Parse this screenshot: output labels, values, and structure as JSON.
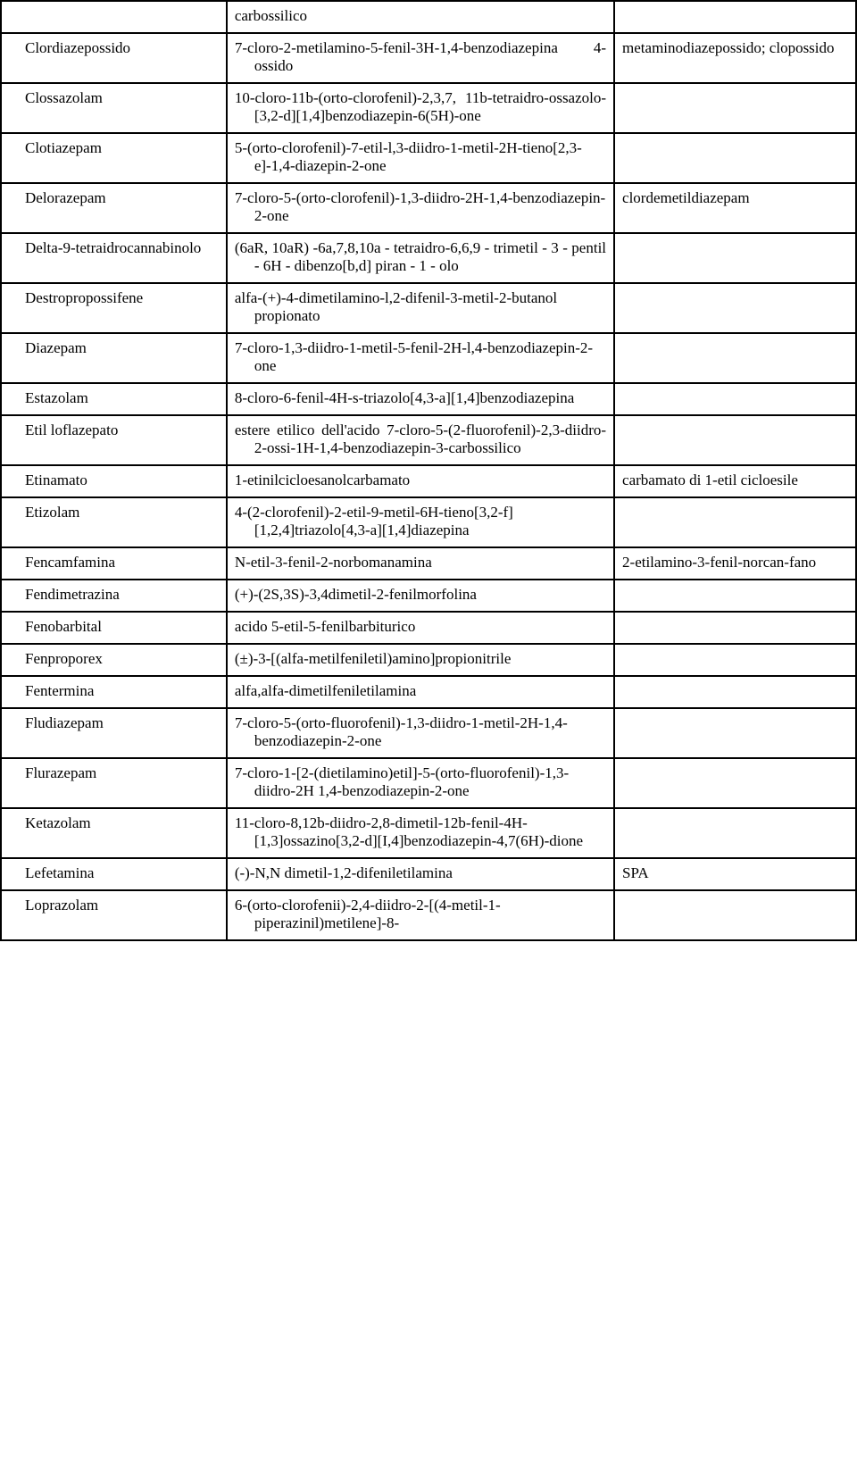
{
  "rows": [
    {
      "c1": "",
      "c2": "carbossilico",
      "c3": ""
    },
    {
      "c1": "Clordiazepossido",
      "c2": "7-cloro-2-metilamino-5-fenil-3H-1,4-benzodiazepina 4-ossido",
      "c3": "metaminodiazepossido; clopossido"
    },
    {
      "c1": "Clossazolam",
      "c2": "10-cloro-11b-(orto-clorofenil)-2,3,7, 11b-tetraidro-ossazolo-[3,2-d][1,4]benzodiazepin-6(5H)-one",
      "c3": ""
    },
    {
      "c1": "Clotiazepam",
      "c2": "5-(orto-clorofenil)-7-etil-l,3-diidro-1-metil-2H-tieno[2,3-e]-1,4-diazepin-2-one",
      "c3": ""
    },
    {
      "c1": "Delorazepam",
      "c2": "7-cloro-5-(orto-clorofenil)-1,3-diidro-2H-1,4-benzodiazepin-2-one",
      "c3": "clordemetildiazepam"
    },
    {
      "c1": "Delta-9-tetraidrocannabinolo",
      "c2": "(6aR, 10aR) -6a,7,8,10a - tetraidro-6,6,9 - trimetil - 3 - pentil - 6H - dibenzo[b,d] piran - 1 - olo",
      "c3": ""
    },
    {
      "c1": "Destropropossifene",
      "c2": "alfa-(+)-4-dimetilamino-l,2-difenil-3-metil-2-butanol propionato",
      "c3": ""
    },
    {
      "c1": "Diazepam",
      "c2": "7-cloro-1,3-diidro-1-metil-5-fenil-2H-l,4-benzodiazepin-2-one",
      "c3": ""
    },
    {
      "c1": "Estazolam",
      "c2": "8-cloro-6-fenil-4H-s-triazolo[4,3-a][1,4]benzodiazepina",
      "c3": ""
    },
    {
      "c1": "Etil loflazepato",
      "c2": "estere etilico dell'acido 7-cloro-5-(2-fluorofenil)-2,3-diidro-2-ossi-1H-1,4-benzodiazepin-3-carbossilico",
      "c3": ""
    },
    {
      "c1": "Etinamato",
      "c2": "1-etinilcicloesanolcarbamato",
      "c3": "carbamato di 1-etil cicloesile"
    },
    {
      "c1": "Etizolam",
      "c2": "4-(2-clorofenil)-2-etil-9-metil-6H-tieno[3,2-f][1,2,4]triazolo[4,3-a][1,4]diazepina",
      "c3": ""
    },
    {
      "c1": "Fencamfamina",
      "c2": "N-etil-3-fenil-2-norbomanamina",
      "c3": "2-etilamino-3-fenil-norcan-fano"
    },
    {
      "c1": "Fendimetrazina",
      "c2": "(+)-(2S,3S)-3,4dimetil-2-fenilmorfolina",
      "c3": ""
    },
    {
      "c1": "Fenobarbital",
      "c2": "acido 5-etil-5-fenilbarbiturico",
      "c3": ""
    },
    {
      "c1": "Fenproporex",
      "c2": "(±)-3-[(alfa-metilfeniletil)amino]propionitrile",
      "c3": ""
    },
    {
      "c1": "Fentermina",
      "c2": "alfa,alfa-dimetilfeniletilamina",
      "c3": ""
    },
    {
      "c1": "Fludiazepam",
      "c2": "7-cloro-5-(orto-fluorofenil)-1,3-diidro-1-metil-2H-1,4-benzodiazepin-2-one",
      "c3": ""
    },
    {
      "c1": "Flurazepam",
      "c2": "7-cloro-1-[2-(dietilamino)etil]-5-(orto-fluorofenil)-1,3-diidro-2H 1,4-benzodiazepin-2-one",
      "c3": ""
    },
    {
      "c1": "Ketazolam",
      "c2": "11-cloro-8,12b-diidro-2,8-dimetil-12b-fenil-4H-[1,3]ossazino[3,2-d][I,4]benzodiazepin-4,7(6H)-dione",
      "c3": ""
    },
    {
      "c1": "Lefetamina",
      "c2": "(-)-N,N dimetil-1,2-difeniletilamina",
      "c3": "SPA"
    },
    {
      "c1": "Loprazolam",
      "c2": "6-(orto-clorofenii)-2,4-diidro-2-[(4-metil-1-piperazinil)metilene]-8-",
      "c3": ""
    }
  ]
}
